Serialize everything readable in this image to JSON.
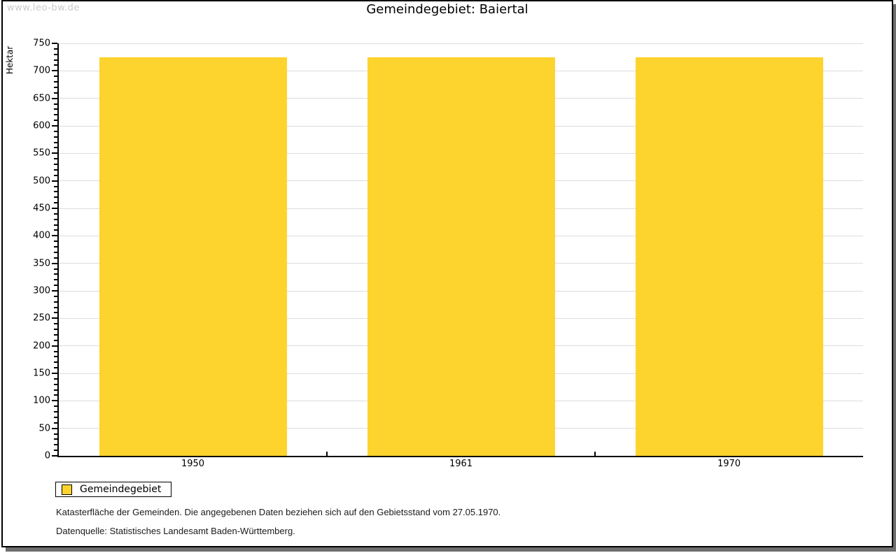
{
  "watermark": "www.leo-bw.de",
  "title": "Gemeindegebiet: Baiertal",
  "chart_data": {
    "type": "bar",
    "title": "Gemeindegebiet: Baiertal",
    "categories": [
      "1950",
      "1961",
      "1970"
    ],
    "series": [
      {
        "name": "Gemeindegebiet",
        "values": [
          725,
          725,
          725
        ]
      }
    ],
    "xlabel": "",
    "ylabel": "Hektar",
    "ylim": [
      0,
      750
    ],
    "ytick_major": 50,
    "ytick_minor": 10,
    "grid": true,
    "bar_color": "#FDD42D",
    "gridline_color": "#dcdcdc",
    "legend_position": "bottom-left"
  },
  "legend": {
    "items": [
      {
        "label": "Gemeindegebiet",
        "color": "#FDD42D"
      }
    ]
  },
  "footer": {
    "line1": "Katasterfläche der Gemeinden. Die angegebenen Daten beziehen sich auf den Gebietsstand vom 27.05.1970.",
    "line2": "Datenquelle: Statistisches Landesamt Baden-Württemberg."
  }
}
